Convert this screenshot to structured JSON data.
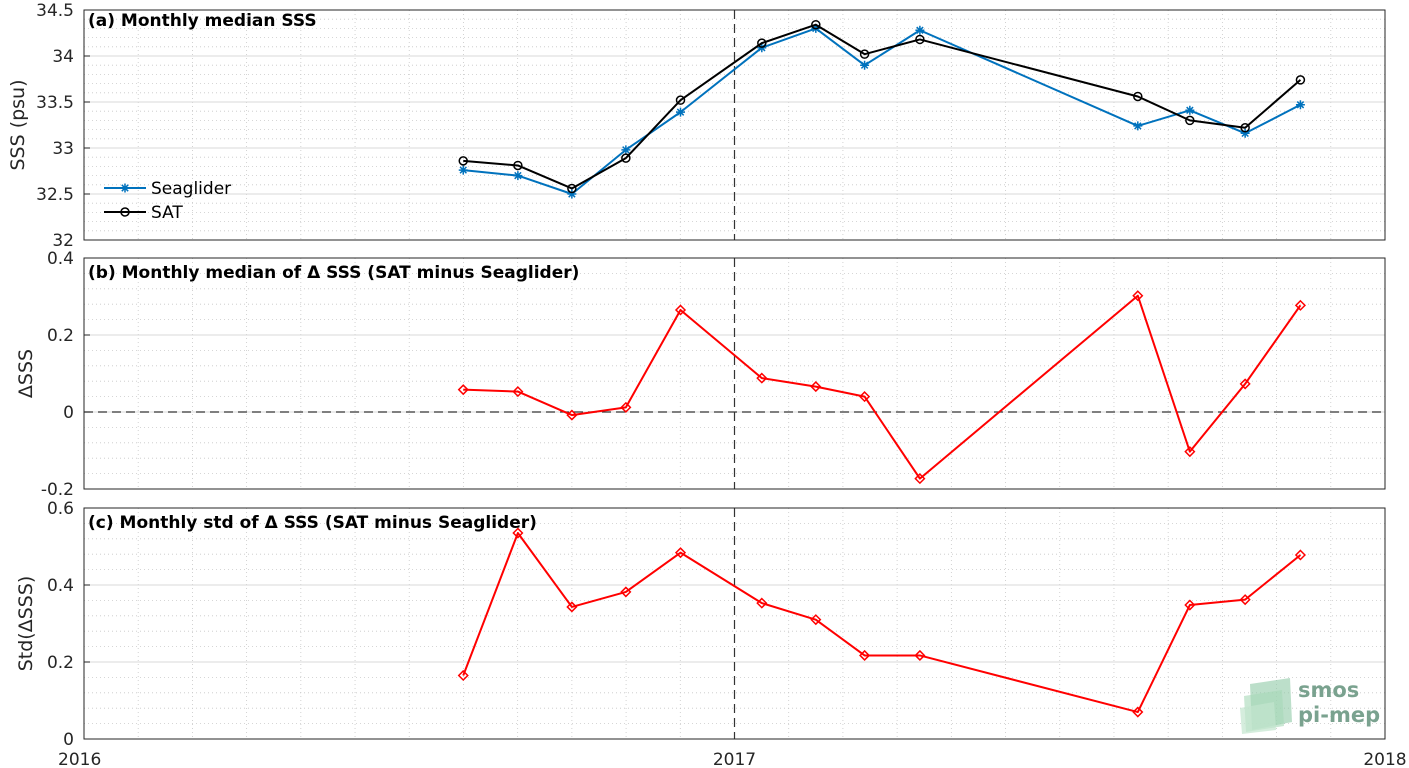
{
  "colors": {
    "seaglider": "#0072BD",
    "sat": "#000000",
    "delta": "#FF0000",
    "grid_major": "#d9d9d9",
    "grid_minor": "#c8c8c8",
    "axis": "#262626",
    "logo": "#7aa28f"
  },
  "x_axis": {
    "ticks": [
      {
        "value": 2016,
        "label": "2016"
      },
      {
        "value": 2017,
        "label": "2017"
      },
      {
        "value": 2018,
        "label": "2018"
      }
    ],
    "range": [
      2016,
      2018
    ],
    "vline": 2017
  },
  "logo": {
    "line1": "smos",
    "line2": "pi-mep"
  },
  "chart_data": [
    {
      "type": "line",
      "title": "(a) Monthly median SSS",
      "ylabel": "SSS (psu)",
      "ylim": [
        32,
        34.5
      ],
      "yticks": [
        32,
        32.5,
        33,
        33.5,
        34,
        34.5
      ],
      "ytick_labels": [
        "32",
        "32.5",
        "33",
        "33.5",
        "34",
        "34.5"
      ],
      "grid": true,
      "legend": {
        "position": "bottom-left"
      },
      "series": [
        {
          "name": "Seaglider",
          "color": "#0072BD",
          "marker": "asterisk",
          "x": [
            2016.583,
            2016.667,
            2016.75,
            2016.833,
            2016.917,
            2017.042,
            2017.125,
            2017.2,
            2017.285,
            2017.62,
            2017.7,
            2017.785,
            2017.87
          ],
          "y": [
            32.76,
            32.7,
            32.5,
            32.98,
            33.39,
            34.09,
            34.3,
            33.9,
            34.28,
            33.24,
            33.41,
            33.16,
            33.47
          ]
        },
        {
          "name": "SAT",
          "color": "#000000",
          "marker": "circle",
          "x": [
            2016.583,
            2016.667,
            2016.75,
            2016.833,
            2016.917,
            2017.042,
            2017.125,
            2017.2,
            2017.285,
            2017.62,
            2017.7,
            2017.785,
            2017.87
          ],
          "y": [
            32.86,
            32.81,
            32.56,
            32.89,
            33.52,
            34.14,
            34.34,
            34.02,
            34.18,
            33.56,
            33.3,
            33.22,
            33.74
          ]
        }
      ]
    },
    {
      "type": "line",
      "title": "(b) Monthly median of Δ SSS (SAT minus Seaglider)",
      "ylabel": "ΔSSS",
      "ylim": [
        -0.2,
        0.4
      ],
      "yticks": [
        -0.2,
        0,
        0.2,
        0.4
      ],
      "ytick_labels": [
        "-0.2",
        "0",
        "0.2",
        "0.4"
      ],
      "zero_line": true,
      "grid": true,
      "series": [
        {
          "color": "#FF0000",
          "marker": "diamond",
          "x": [
            2016.583,
            2016.667,
            2016.75,
            2016.833,
            2016.917,
            2017.042,
            2017.125,
            2017.2,
            2017.285,
            2017.62,
            2017.7,
            2017.785,
            2017.87
          ],
          "y": [
            0.058,
            0.053,
            -0.008,
            0.012,
            0.265,
            0.088,
            0.066,
            0.04,
            -0.173,
            0.302,
            -0.103,
            0.073,
            0.277
          ]
        }
      ]
    },
    {
      "type": "line",
      "title": "(c) Monthly std of Δ SSS (SAT minus Seaglider)",
      "ylabel": "Std(ΔSSS)",
      "ylim": [
        0,
        0.6
      ],
      "yticks": [
        0,
        0.2,
        0.4,
        0.6
      ],
      "ytick_labels": [
        "0",
        "0.2",
        "0.4",
        "0.6"
      ],
      "grid": true,
      "series": [
        {
          "color": "#FF0000",
          "marker": "diamond",
          "x": [
            2016.583,
            2016.667,
            2016.75,
            2016.833,
            2016.917,
            2017.042,
            2017.125,
            2017.2,
            2017.285,
            2017.62,
            2017.7,
            2017.785,
            2017.87
          ],
          "y": [
            0.165,
            0.535,
            0.343,
            0.382,
            0.484,
            0.353,
            0.31,
            0.217,
            0.217,
            0.07,
            0.348,
            0.362,
            0.478
          ]
        }
      ]
    }
  ]
}
